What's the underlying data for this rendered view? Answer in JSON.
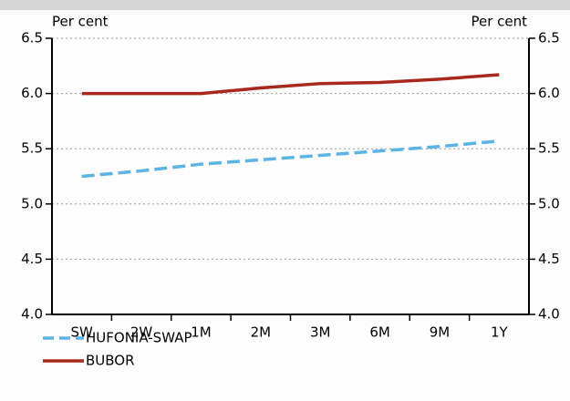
{
  "chart_data": {
    "type": "line",
    "ylabel": "Per cent",
    "y2label": "Per cent",
    "categories": [
      "SW",
      "2W",
      "1M",
      "2M",
      "3M",
      "6M",
      "9M",
      "1Y"
    ],
    "series": [
      {
        "name": "HUFONIA-SWAP",
        "color": "#5bb4e3",
        "dashed": true,
        "values": [
          5.25,
          5.3,
          5.36,
          5.4,
          5.44,
          5.48,
          5.52,
          5.57
        ]
      },
      {
        "name": "BUBOR",
        "color": "#a8281c",
        "dashed": false,
        "values": [
          6.0,
          6.0,
          6.0,
          6.05,
          6.09,
          6.1,
          6.13,
          6.17
        ]
      }
    ],
    "ylim": [
      4,
      6.5
    ],
    "yticks": [
      {
        "value": 4,
        "label": "4.0"
      },
      4.5,
      {
        "value": 5,
        "label": "5.0"
      },
      5.5,
      {
        "value": 6,
        "label": "6.0"
      },
      6.5
    ],
    "y2lim": [
      4,
      6.5
    ],
    "y2ticks": [
      {
        "value": 4,
        "label": "4.0"
      },
      4.5,
      {
        "value": 5,
        "label": "5.0"
      },
      5.5,
      {
        "value": 6,
        "label": "6.0"
      },
      6.5
    ],
    "grid": true,
    "legend": "bottom-left"
  }
}
